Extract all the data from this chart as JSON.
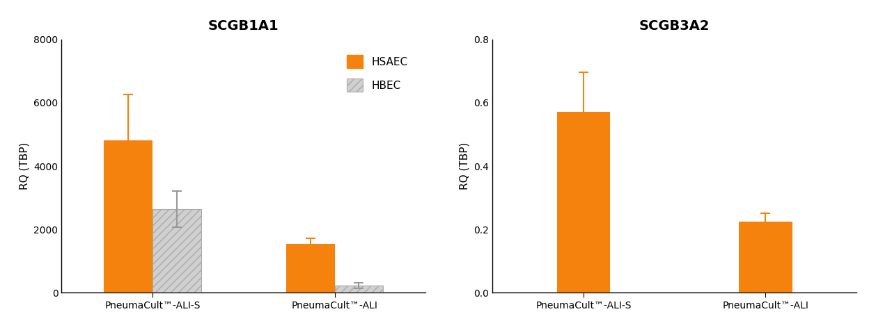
{
  "chart1": {
    "title": "SCGB1A1",
    "ylabel": "RQ (TBP)",
    "ylim": [
      0,
      8000
    ],
    "yticks": [
      0,
      2000,
      4000,
      6000,
      8000
    ],
    "groups": [
      "PneumaCult™-ALI-S",
      "PneumaCult™-ALI"
    ],
    "hsaec_values": [
      4820,
      1540
    ],
    "hsaec_errors": [
      1430,
      190
    ],
    "hbec_values": [
      2640,
      235
    ],
    "hbec_errors": [
      580,
      90
    ],
    "hsaec_color": "#F5820D",
    "hbec_color": "#D0D0D0",
    "hbec_edgecolor": "#AAAAAA",
    "hbec_hatch": "///",
    "error_color_hsaec": "#F5820D",
    "error_color_hbec": "#999999"
  },
  "chart2": {
    "title": "SCGB3A2",
    "ylabel": "RQ (TBP)",
    "ylim": [
      0,
      0.8
    ],
    "yticks": [
      0.0,
      0.2,
      0.4,
      0.6,
      0.8
    ],
    "groups": [
      "PneumaCult™-ALI-S",
      "PneumaCult™-ALI"
    ],
    "hsaec_values": [
      0.571,
      0.224
    ],
    "hsaec_errors": [
      0.125,
      0.028
    ],
    "hsaec_color": "#F5820D",
    "error_color": "#F5820D"
  },
  "legend_labels": [
    "HSAEC",
    "HBEC"
  ],
  "bar_width": 0.32,
  "background_color": "#FFFFFF",
  "title_fontsize": 14,
  "label_fontsize": 11,
  "tick_fontsize": 10,
  "legend_fontsize": 11
}
